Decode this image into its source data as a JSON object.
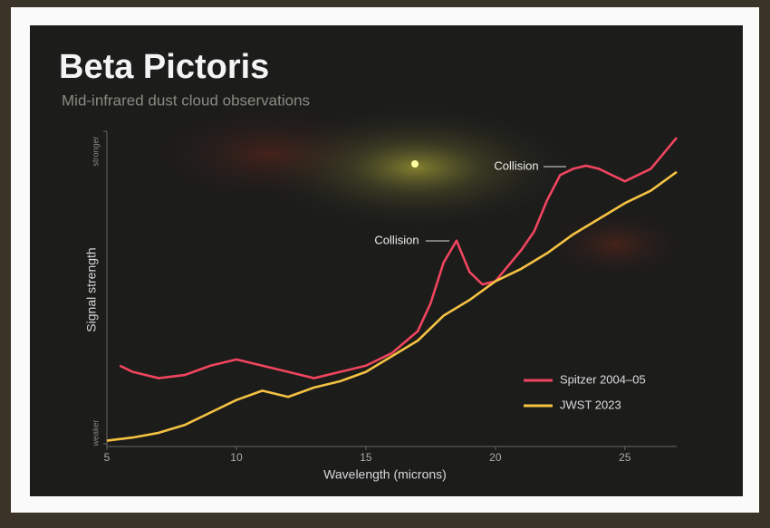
{
  "chart_data": {
    "type": "line",
    "title": "Beta Pictoris",
    "subtitle": "Mid-infrared dust cloud observations",
    "x_label": "Wavelength (microns)",
    "y_label": "Signal strength",
    "xlim": [
      5,
      27
    ],
    "xticks": [
      5,
      10,
      15,
      20,
      25
    ],
    "ylim": [
      0,
      100
    ],
    "yticks": [
      {
        "value": 0,
        "label": "weaker"
      },
      {
        "value": 100,
        "label": "stronger"
      }
    ],
    "annotations": [
      "Collision",
      "Collision"
    ],
    "legend": "lower right",
    "series": [
      {
        "name": "Spitzer 2004–05",
        "color": "#f0455e",
        "x": [
          5.5,
          6,
          7,
          8,
          9,
          10,
          11,
          12,
          13,
          14,
          15,
          16,
          17,
          17.5,
          18,
          18.5,
          19,
          19.5,
          20,
          20.5,
          21,
          21.5,
          22,
          22.5,
          23,
          23.5,
          24,
          24.5,
          25,
          25.5,
          26,
          26.5,
          27
        ],
        "values": [
          25,
          23,
          21,
          22,
          25,
          27,
          25,
          23,
          21,
          23,
          25,
          29,
          36,
          45,
          58,
          65,
          55,
          51,
          52,
          57,
          62,
          68,
          78,
          86,
          88,
          89,
          88,
          86,
          84,
          86,
          88,
          93,
          98
        ]
      },
      {
        "name": "JWST 2023",
        "color": "#f5c242",
        "x": [
          5,
          6,
          7,
          8,
          9,
          10,
          11,
          12,
          13,
          14,
          15,
          16,
          17,
          18,
          19,
          20,
          21,
          22,
          23,
          24,
          25,
          26,
          27
        ],
        "values": [
          1,
          2,
          3.5,
          6,
          10,
          14,
          17,
          15,
          18,
          20,
          23,
          28,
          33,
          41,
          46,
          52,
          56,
          61,
          67,
          72,
          77,
          81,
          87
        ]
      }
    ]
  }
}
